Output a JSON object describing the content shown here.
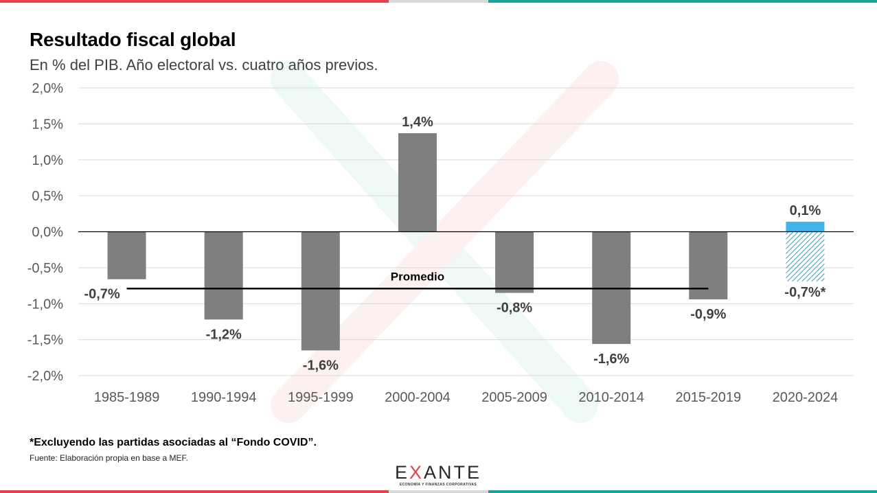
{
  "header": {
    "title": "Resultado fiscal global",
    "subtitle": "En % del PIB. Año electoral vs. cuatro años previos."
  },
  "footer": {
    "note": "*Excluyendo las partidas asociadas al “Fondo COVID”.",
    "source": "Fuente: Elaboración propia en base a MEF.",
    "logo_text": "EXANTE",
    "logo_letters": [
      "E",
      "X",
      "ANTE"
    ],
    "logo_tagline": "ECONOMÍA Y FINANZAS CORPORATIVAS"
  },
  "colors": {
    "bar": "#7f7f7f",
    "highlight_bar": "#3fb3ea",
    "hatch": "#3aa0b8",
    "grid": "#d9d9d9",
    "zero_line": "#000000",
    "average_line": "#000000",
    "stripe_red": "#e8404b",
    "stripe_teal": "#1aa39a",
    "watermark_green": "#1aa39a",
    "watermark_red": "#e8404b"
  },
  "chart_data": {
    "type": "bar",
    "title": "Resultado fiscal global",
    "ylim": [
      -2.0,
      2.0
    ],
    "ytick_values": [
      2.0,
      1.5,
      1.0,
      0.5,
      0.0,
      -0.5,
      -1.0,
      -1.5,
      -2.0
    ],
    "ytick_labels": [
      "2,0%",
      "1,5%",
      "1,0%",
      "0,5%",
      "0,0%",
      "-0,5%",
      "-1,0%",
      "-1,5%",
      "-2,0%"
    ],
    "categories": [
      "1985-1989",
      "1990-1994",
      "1995-1999",
      "2000-2004",
      "2005-2009",
      "2010-2014",
      "2015-2019",
      "2020-2024"
    ],
    "values": [
      -0.66,
      -1.22,
      -1.65,
      1.37,
      -0.85,
      -1.56,
      -0.94,
      0.14
    ],
    "data_labels": [
      "-0,7%",
      "-1,2%",
      "-1,6%",
      "1,4%",
      "-0,8%",
      "-1,6%",
      "-0,9%",
      "0,1%"
    ],
    "highlight_index": 7,
    "adjusted": {
      "category": "2020-2024",
      "value": -0.69,
      "label": "-0,7%*",
      "style": "hatched"
    },
    "average": {
      "label": "Promedio",
      "value": -0.79,
      "from_category": "1985-1989",
      "to_category": "2015-2019"
    },
    "grid": true
  }
}
